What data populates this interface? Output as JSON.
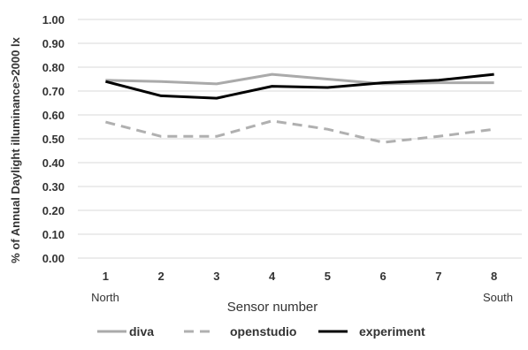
{
  "chart_data": {
    "type": "line",
    "title": "",
    "xlabel": "Sensor number",
    "ylabel": "% of Annual Daylight illuminance>2000 lx",
    "categories": [
      "1",
      "2",
      "3",
      "4",
      "5",
      "6",
      "7",
      "8"
    ],
    "category_notes": {
      "start": "North",
      "end": "South"
    },
    "ylim": [
      0,
      1.0
    ],
    "yticks": [
      "0.00",
      "0.10",
      "0.20",
      "0.30",
      "0.40",
      "0.50",
      "0.60",
      "0.70",
      "0.80",
      "0.90",
      "1.00"
    ],
    "grid": true,
    "legend_position": "bottom",
    "series": [
      {
        "name": "diva",
        "values": [
          0.745,
          0.74,
          0.73,
          0.77,
          0.75,
          0.73,
          0.735,
          0.735
        ],
        "color": "#aaaaaa",
        "style": "solid"
      },
      {
        "name": "openstudio",
        "values": [
          0.57,
          0.51,
          0.51,
          0.575,
          0.54,
          0.485,
          0.51,
          0.54
        ],
        "color": "#b0b0b0",
        "style": "dashed"
      },
      {
        "name": "experiment",
        "values": [
          0.74,
          0.68,
          0.67,
          0.72,
          0.715,
          0.735,
          0.745,
          0.77
        ],
        "color": "#000000",
        "style": "solid"
      }
    ]
  }
}
